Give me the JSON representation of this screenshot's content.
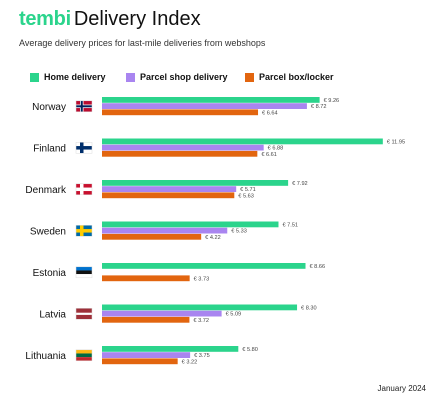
{
  "header": {
    "logo_text": "tembi",
    "title": "Delivery Index",
    "subtitle": "Average delivery prices for last-mile deliveries from webshops"
  },
  "legend": [
    {
      "label": "Home delivery",
      "color": "#2bd48c"
    },
    {
      "label": "Parcel shop delivery",
      "color": "#a985f0"
    },
    {
      "label": "Parcel box/locker",
      "color": "#e2650f"
    }
  ],
  "footer": {
    "date": "January 2024"
  },
  "chart_data": {
    "type": "bar",
    "orientation": "horizontal",
    "value_prefix": "€ ",
    "categories": [
      "Norway",
      "Finland",
      "Denmark",
      "Sweden",
      "Estonia",
      "Latvia",
      "Lithuania"
    ],
    "flags": [
      "norway-flag-icon",
      "finland-flag-icon",
      "denmark-flag-icon",
      "sweden-flag-icon",
      "estonia-flag-icon",
      "latvia-flag-icon",
      "lithuania-flag-icon"
    ],
    "series": [
      {
        "name": "Home delivery",
        "color": "#2bd48c",
        "values": [
          9.26,
          11.95,
          7.92,
          7.51,
          8.66,
          8.3,
          5.8
        ]
      },
      {
        "name": "Parcel shop delivery",
        "color": "#a985f0",
        "values": [
          8.72,
          6.88,
          5.71,
          5.33,
          null,
          5.09,
          3.75
        ]
      },
      {
        "name": "Parcel box/locker",
        "color": "#e2650f",
        "values": [
          6.64,
          6.61,
          5.63,
          4.22,
          3.73,
          3.72,
          3.22
        ]
      }
    ],
    "xlim": [
      0,
      12
    ],
    "grid": false,
    "legend_position": "top"
  }
}
